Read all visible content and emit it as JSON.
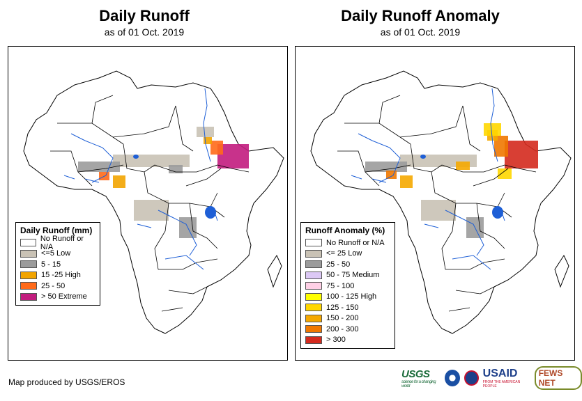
{
  "left": {
    "title": "Daily Runoff",
    "subtitle": "as of 01 Oct. 2019",
    "legend_title": "Daily Runoff (mm)",
    "legend": [
      {
        "label": "No Runoff or N/A",
        "color": "#ffffff"
      },
      {
        "label": "<=5 Low",
        "color": "#c9c2b5"
      },
      {
        "label": "5 - 15",
        "color": "#9b9b9b"
      },
      {
        "label": "15 -25 High",
        "color": "#f2a400"
      },
      {
        "label": "25 - 50",
        "color": "#ff6a1a"
      },
      {
        "label": "> 50 Extreme",
        "color": "#c21c7e"
      }
    ]
  },
  "right": {
    "title": "Daily Runoff Anomaly",
    "subtitle": "as of 01 Oct. 2019",
    "legend_title": "Runoff Anomaly (%)",
    "legend": [
      {
        "label": "No Runoff or N/A",
        "color": "#ffffff"
      },
      {
        "label": "<= 25 Low",
        "color": "#c9c2b5"
      },
      {
        "label": "25 - 50",
        "color": "#9b9b9b"
      },
      {
        "label": "50 - 75 Medium",
        "color": "#dcc8f5"
      },
      {
        "label": "75 - 100",
        "color": "#ffd0e6"
      },
      {
        "label": "100 - 125 High",
        "color": "#ffff00"
      },
      {
        "label": "125 - 150",
        "color": "#ffd700"
      },
      {
        "label": "150 - 200",
        "color": "#f5a800"
      },
      {
        "label": "200 - 300",
        "color": "#f07800"
      },
      {
        "label": "> 300",
        "color": "#d42a1e"
      }
    ]
  },
  "footer": "Map produced by USGS/EROS",
  "logos": [
    "USGS",
    "NOAA",
    "USAID",
    "FEWS NET"
  ],
  "colors": {
    "water": "#1e5fd6",
    "land": "#ffffff",
    "border": "#000000"
  }
}
